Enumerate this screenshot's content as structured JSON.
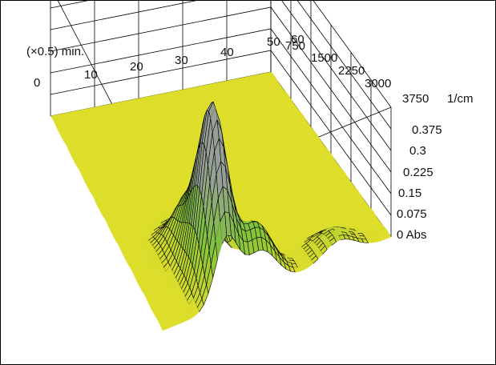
{
  "chart_data": {
    "type": "surface-3d",
    "time_axis": {
      "unit": "(×0.5) min.",
      "ticks": [
        "0",
        "10",
        "20",
        "30",
        "40",
        "50",
        "60"
      ]
    },
    "wavenumber_axis": {
      "unit": "1/cm",
      "ticks": [
        "750",
        "1500",
        "2250",
        "3000",
        "3750"
      ]
    },
    "absorbance_axis": {
      "unit": "Abs",
      "ticks": [
        "0",
        "0.075",
        "0.15",
        "0.225",
        "0.3",
        "0.375"
      ],
      "zlim": [
        0,
        0.45
      ]
    },
    "peaks": [
      {
        "time": 55,
        "wavenumber": 1050,
        "abs": 0.4
      },
      {
        "time": 50,
        "wavenumber": 1000,
        "abs": 0.33
      },
      {
        "time": 42,
        "wavenumber": 1000,
        "abs": 0.14
      },
      {
        "time": 57,
        "wavenumber": 1600,
        "abs": 0.2
      },
      {
        "time": 58,
        "wavenumber": 2900,
        "abs": 0.07
      }
    ],
    "colors": {
      "low": "#dede2a",
      "mid": "#7fc23a",
      "high": "#8f9a8f",
      "contour": "#000000"
    }
  }
}
